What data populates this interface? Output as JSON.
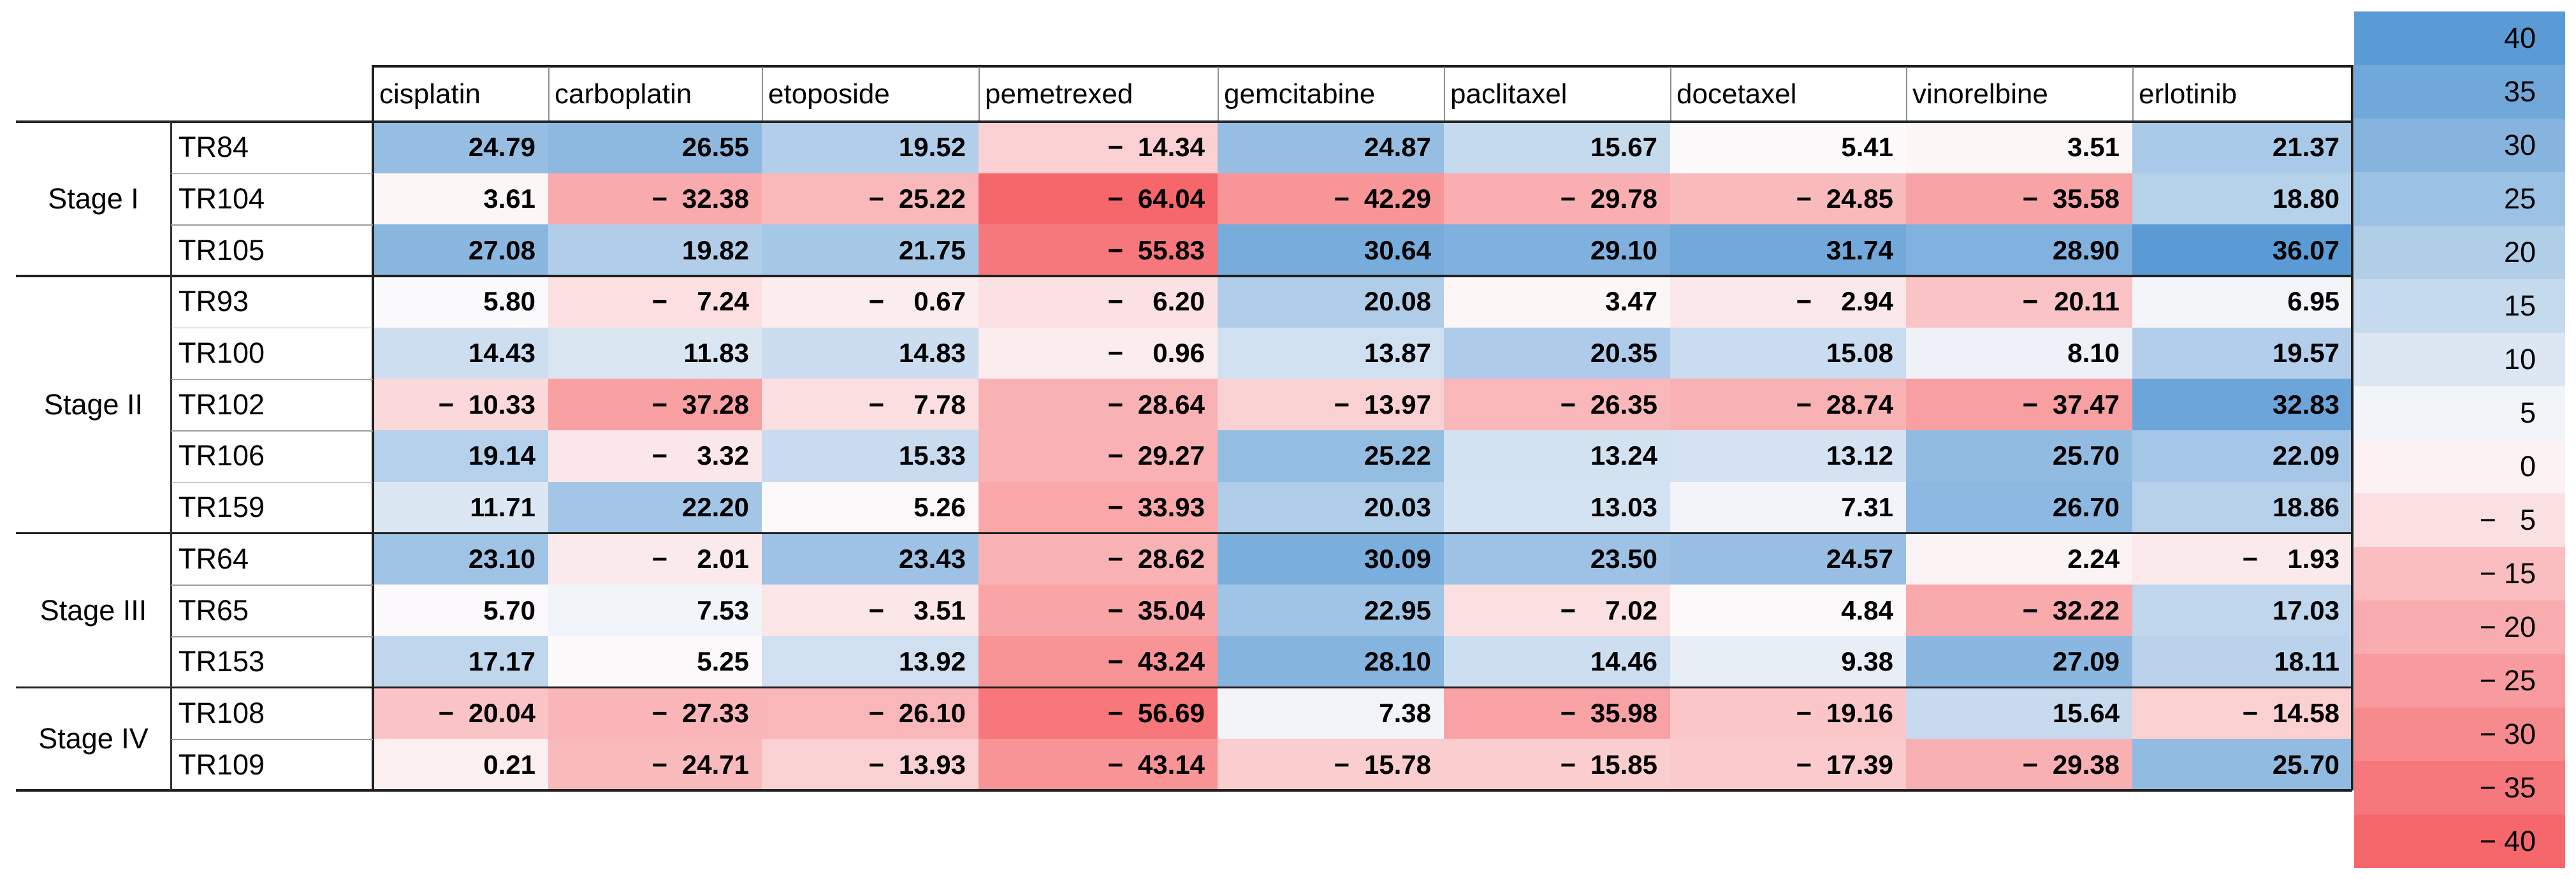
{
  "table": {
    "column_headers": [
      "cisplatin",
      "carboplatin",
      "etoposide",
      "pemetrexed",
      "gemcitabine",
      "paclitaxel",
      "docetaxel",
      "vinorelbine",
      "erlotinib"
    ],
    "row_groups": [
      {
        "stage": "Stage I",
        "rows": [
          {
            "sample": "TR84",
            "values": [
              24.79,
              26.55,
              19.52,
              -14.34,
              24.87,
              15.67,
              5.41,
              3.51,
              21.37
            ]
          },
          {
            "sample": "TR104",
            "values": [
              3.61,
              -32.38,
              -25.22,
              -64.04,
              -42.29,
              -29.78,
              -24.85,
              -35.58,
              18.8
            ]
          },
          {
            "sample": "TR105",
            "values": [
              27.08,
              19.82,
              21.75,
              -55.83,
              30.64,
              29.1,
              31.74,
              28.9,
              36.07
            ]
          }
        ]
      },
      {
        "stage": "Stage II",
        "rows": [
          {
            "sample": "TR93",
            "values": [
              5.8,
              -7.24,
              -0.67,
              -6.2,
              20.08,
              3.47,
              -2.94,
              -20.11,
              6.95
            ]
          },
          {
            "sample": "TR100",
            "values": [
              14.43,
              11.83,
              14.83,
              -0.96,
              13.87,
              20.35,
              15.08,
              8.1,
              19.57
            ]
          },
          {
            "sample": "TR102",
            "values": [
              -10.33,
              -37.28,
              -7.78,
              -28.64,
              -13.97,
              -26.35,
              -28.74,
              -37.47,
              32.83
            ]
          },
          {
            "sample": "TR106",
            "values": [
              19.14,
              -3.32,
              15.33,
              -29.27,
              25.22,
              13.24,
              13.12,
              25.7,
              22.09
            ]
          },
          {
            "sample": "TR159",
            "values": [
              11.71,
              22.2,
              5.26,
              -33.93,
              20.03,
              13.03,
              7.31,
              26.7,
              18.86
            ]
          }
        ]
      },
      {
        "stage": "Stage III",
        "rows": [
          {
            "sample": "TR64",
            "values": [
              23.1,
              -2.01,
              23.43,
              -28.62,
              30.09,
              23.5,
              24.57,
              2.24,
              -1.93
            ]
          },
          {
            "sample": "TR65",
            "values": [
              5.7,
              7.53,
              -3.51,
              -35.04,
              22.95,
              -7.02,
              4.84,
              -32.22,
              17.03
            ]
          },
          {
            "sample": "TR153",
            "values": [
              17.17,
              5.25,
              13.92,
              -43.24,
              28.1,
              14.46,
              9.38,
              27.09,
              18.11
            ]
          }
        ]
      },
      {
        "stage": "Stage IV",
        "rows": [
          {
            "sample": "TR108",
            "values": [
              -20.04,
              -27.33,
              -26.1,
              -56.69,
              7.38,
              -35.98,
              -19.16,
              15.64,
              -14.58
            ]
          },
          {
            "sample": "TR109",
            "values": [
              0.21,
              -24.71,
              -13.93,
              -43.14,
              -15.78,
              -15.85,
              -17.39,
              -29.38,
              25.7
            ]
          }
        ]
      }
    ],
    "number_format": "0.00"
  },
  "legend": {
    "tick_labels": [
      40,
      35,
      30,
      25,
      20,
      15,
      10,
      5,
      0,
      -5,
      -15,
      -20,
      -25,
      -30,
      -35,
      -40
    ]
  },
  "colors": {
    "positive_max": "#5B9BD5",
    "negative_max": "#F6676B",
    "neutral": "#FCFAFB"
  },
  "color_scale": {
    "table": {
      "min": -64.04,
      "mid": 5.5,
      "max": 36.07
    },
    "legend": {
      "min": -40,
      "mid": 2.5,
      "max": 40
    }
  },
  "chart_data": {
    "type": "heatmap",
    "title": "",
    "columns": [
      "cisplatin",
      "carboplatin",
      "etoposide",
      "pemetrexed",
      "gemcitabine",
      "paclitaxel",
      "docetaxel",
      "vinorelbine",
      "erlotinib"
    ],
    "rows": [
      "TR84",
      "TR104",
      "TR105",
      "TR93",
      "TR100",
      "TR102",
      "TR106",
      "TR159",
      "TR64",
      "TR65",
      "TR153",
      "TR108",
      "TR109"
    ],
    "row_stages": [
      "Stage I",
      "Stage I",
      "Stage I",
      "Stage II",
      "Stage II",
      "Stage II",
      "Stage II",
      "Stage II",
      "Stage III",
      "Stage III",
      "Stage III",
      "Stage IV",
      "Stage IV"
    ],
    "values": [
      [
        24.79,
        26.55,
        19.52,
        -14.34,
        24.87,
        15.67,
        5.41,
        3.51,
        21.37
      ],
      [
        3.61,
        -32.38,
        -25.22,
        -64.04,
        -42.29,
        -29.78,
        -24.85,
        -35.58,
        18.8
      ],
      [
        27.08,
        19.82,
        21.75,
        -55.83,
        30.64,
        29.1,
        31.74,
        28.9,
        36.07
      ],
      [
        5.8,
        -7.24,
        -0.67,
        -6.2,
        20.08,
        3.47,
        -2.94,
        -20.11,
        6.95
      ],
      [
        14.43,
        11.83,
        14.83,
        -0.96,
        13.87,
        20.35,
        15.08,
        8.1,
        19.57
      ],
      [
        -10.33,
        -37.28,
        -7.78,
        -28.64,
        -13.97,
        -26.35,
        -28.74,
        -37.47,
        32.83
      ],
      [
        19.14,
        -3.32,
        15.33,
        -29.27,
        25.22,
        13.24,
        13.12,
        25.7,
        22.09
      ],
      [
        11.71,
        22.2,
        5.26,
        -33.93,
        20.03,
        13.03,
        7.31,
        26.7,
        18.86
      ],
      [
        23.1,
        -2.01,
        23.43,
        -28.62,
        30.09,
        23.5,
        24.57,
        2.24,
        -1.93
      ],
      [
        5.7,
        7.53,
        -3.51,
        -35.04,
        22.95,
        -7.02,
        4.84,
        -32.22,
        17.03
      ],
      [
        17.17,
        5.25,
        13.92,
        -43.24,
        28.1,
        14.46,
        9.38,
        27.09,
        18.11
      ],
      [
        -20.04,
        -27.33,
        -26.1,
        -56.69,
        7.38,
        -35.98,
        -19.16,
        15.64,
        -14.58
      ],
      [
        0.21,
        -24.71,
        -13.93,
        -43.14,
        -15.78,
        -15.85,
        -17.39,
        -29.38,
        25.7
      ]
    ],
    "colorbar": {
      "ticks": [
        40,
        35,
        30,
        25,
        20,
        15,
        10,
        5,
        0,
        -5,
        -15,
        -20,
        -25,
        -30,
        -35,
        -40
      ],
      "range": [
        -40,
        40
      ],
      "colors": [
        "#F6676B",
        "#FCFAFB",
        "#5B9BD5"
      ]
    },
    "legend_position": "right",
    "grid": false
  }
}
